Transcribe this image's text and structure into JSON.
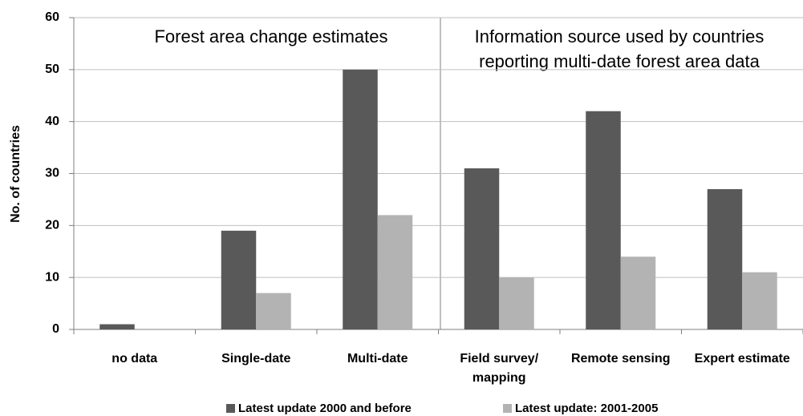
{
  "chart_data": {
    "type": "bar",
    "y_label": "No. of countries",
    "annotations": [
      "Forest area change estimates",
      "Information source used by countries",
      "reporting multi-date forest area data"
    ],
    "categories": [
      "no data",
      "Single-date",
      "Multi-date",
      "Field survey/\nmapping",
      "Remote sensing",
      "Expert estimate"
    ],
    "series": [
      {
        "name": "Latest update 2000 and before",
        "color": "#595959",
        "values": [
          1,
          19,
          50,
          31,
          42,
          27
        ]
      },
      {
        "name": "Latest update: 2001-2005",
        "color": "#b3b3b3",
        "values": [
          0,
          7,
          22,
          10,
          14,
          11
        ]
      }
    ],
    "ylim": [
      0,
      60
    ],
    "yticks": [
      0,
      10,
      20,
      30,
      40,
      50,
      60
    ],
    "grid": true,
    "legend": "bottom"
  }
}
